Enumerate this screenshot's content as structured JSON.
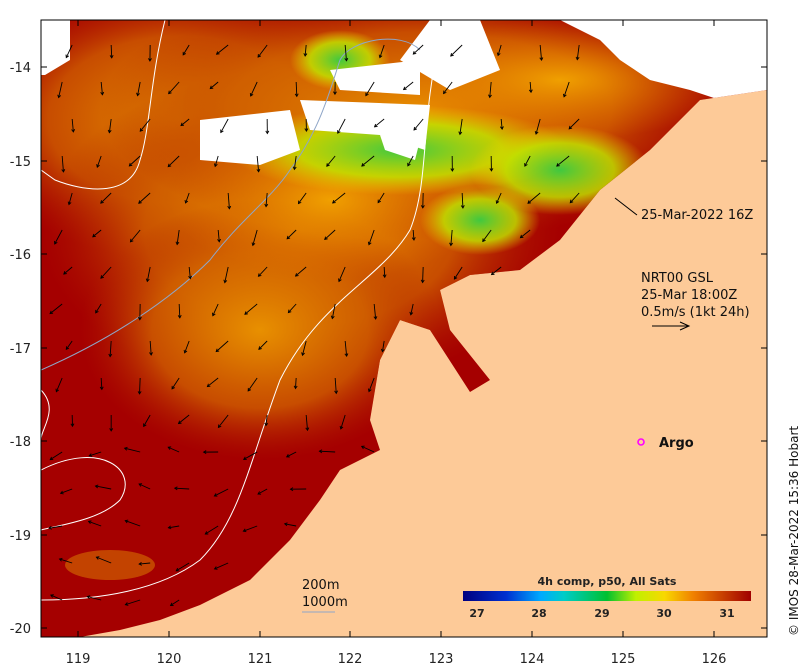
{
  "map": {
    "lon_ticks": [
      "119",
      "120",
      "121",
      "122",
      "123",
      "124",
      "125",
      "126"
    ],
    "lat_ticks": [
      "-14",
      "-15",
      "-16",
      "-17",
      "-18",
      "-19",
      "-20"
    ],
    "time_label": "25-Mar-2022 16Z",
    "current_title": "NRT00 GSL",
    "current_time": "25-Mar 18:00Z",
    "current_scale": "0.5m/s (1kt 24h)",
    "argo_label": "Argo",
    "contour_200": "200m",
    "contour_1000": "1000m",
    "colorbar_title": "4h comp, p50, All Sats",
    "colorbar_ticks": [
      "27",
      "28",
      "29",
      "30",
      "31"
    ],
    "credit": "© IMOS 28-Mar-2022 15:36 Hobart",
    "colors": {
      "land": "#fdca98",
      "sea_warm": "#a50000",
      "argo": "#ff00ff",
      "contour_1000": "#8fa6c8"
    }
  }
}
